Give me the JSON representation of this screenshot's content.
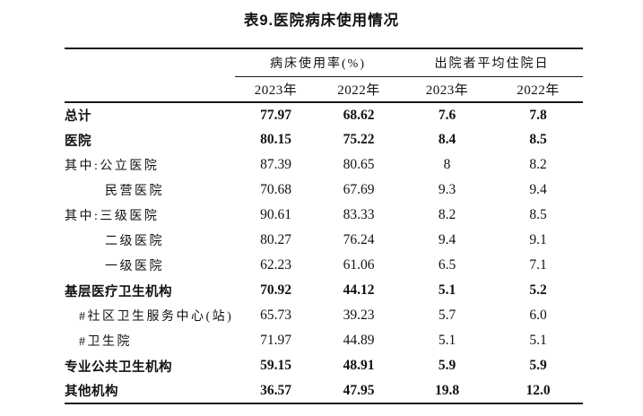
{
  "title": "表9.医院病床使用情况",
  "colors": {
    "text": "#111111",
    "rule": "#1a1a1a",
    "background": "#ffffff"
  },
  "table": {
    "col_groups": [
      {
        "label": "病床使用率(%)"
      },
      {
        "label": "出院者平均住院日"
      }
    ],
    "year_headers": [
      "2023年",
      "2022年",
      "2023年",
      "2022年"
    ],
    "rows": [
      {
        "label": "总计",
        "bold": true,
        "indent": 0,
        "values": [
          "77.97",
          "68.62",
          "7.6",
          "7.8"
        ]
      },
      {
        "label": "医院",
        "bold": true,
        "indent": 0,
        "values": [
          "80.15",
          "75.22",
          "8.4",
          "8.5"
        ]
      },
      {
        "label": "其中:公立医院",
        "bold": false,
        "indent": 0,
        "values": [
          "87.39",
          "80.65",
          "8",
          "8.2"
        ]
      },
      {
        "label": "民营医院",
        "bold": false,
        "indent": 2,
        "values": [
          "70.68",
          "67.69",
          "9.3",
          "9.4"
        ]
      },
      {
        "label": "其中:三级医院",
        "bold": false,
        "indent": 0,
        "values": [
          "90.61",
          "83.33",
          "8.2",
          "8.5"
        ]
      },
      {
        "label": "二级医院",
        "bold": false,
        "indent": 2,
        "values": [
          "80.27",
          "76.24",
          "9.4",
          "9.1"
        ]
      },
      {
        "label": "一级医院",
        "bold": false,
        "indent": 2,
        "values": [
          "62.23",
          "61.06",
          "6.5",
          "7.1"
        ]
      },
      {
        "label": "基层医疗卫生机构",
        "bold": true,
        "indent": 0,
        "values": [
          "70.92",
          "44.12",
          "5.1",
          "5.2"
        ]
      },
      {
        "label": "#社区卫生服务中心(站)",
        "bold": false,
        "indent": 1,
        "values": [
          "65.73",
          "39.23",
          "5.7",
          "6.0"
        ]
      },
      {
        "label": "#卫生院",
        "bold": false,
        "indent": 1,
        "values": [
          "71.97",
          "44.89",
          "5.1",
          "5.1"
        ]
      },
      {
        "label": "专业公共卫生机构",
        "bold": true,
        "indent": 0,
        "values": [
          "59.15",
          "48.91",
          "5.9",
          "5.9"
        ]
      },
      {
        "label": "其他机构",
        "bold": true,
        "indent": 0,
        "values": [
          "36.57",
          "47.95",
          "19.8",
          "12.0"
        ]
      }
    ]
  }
}
